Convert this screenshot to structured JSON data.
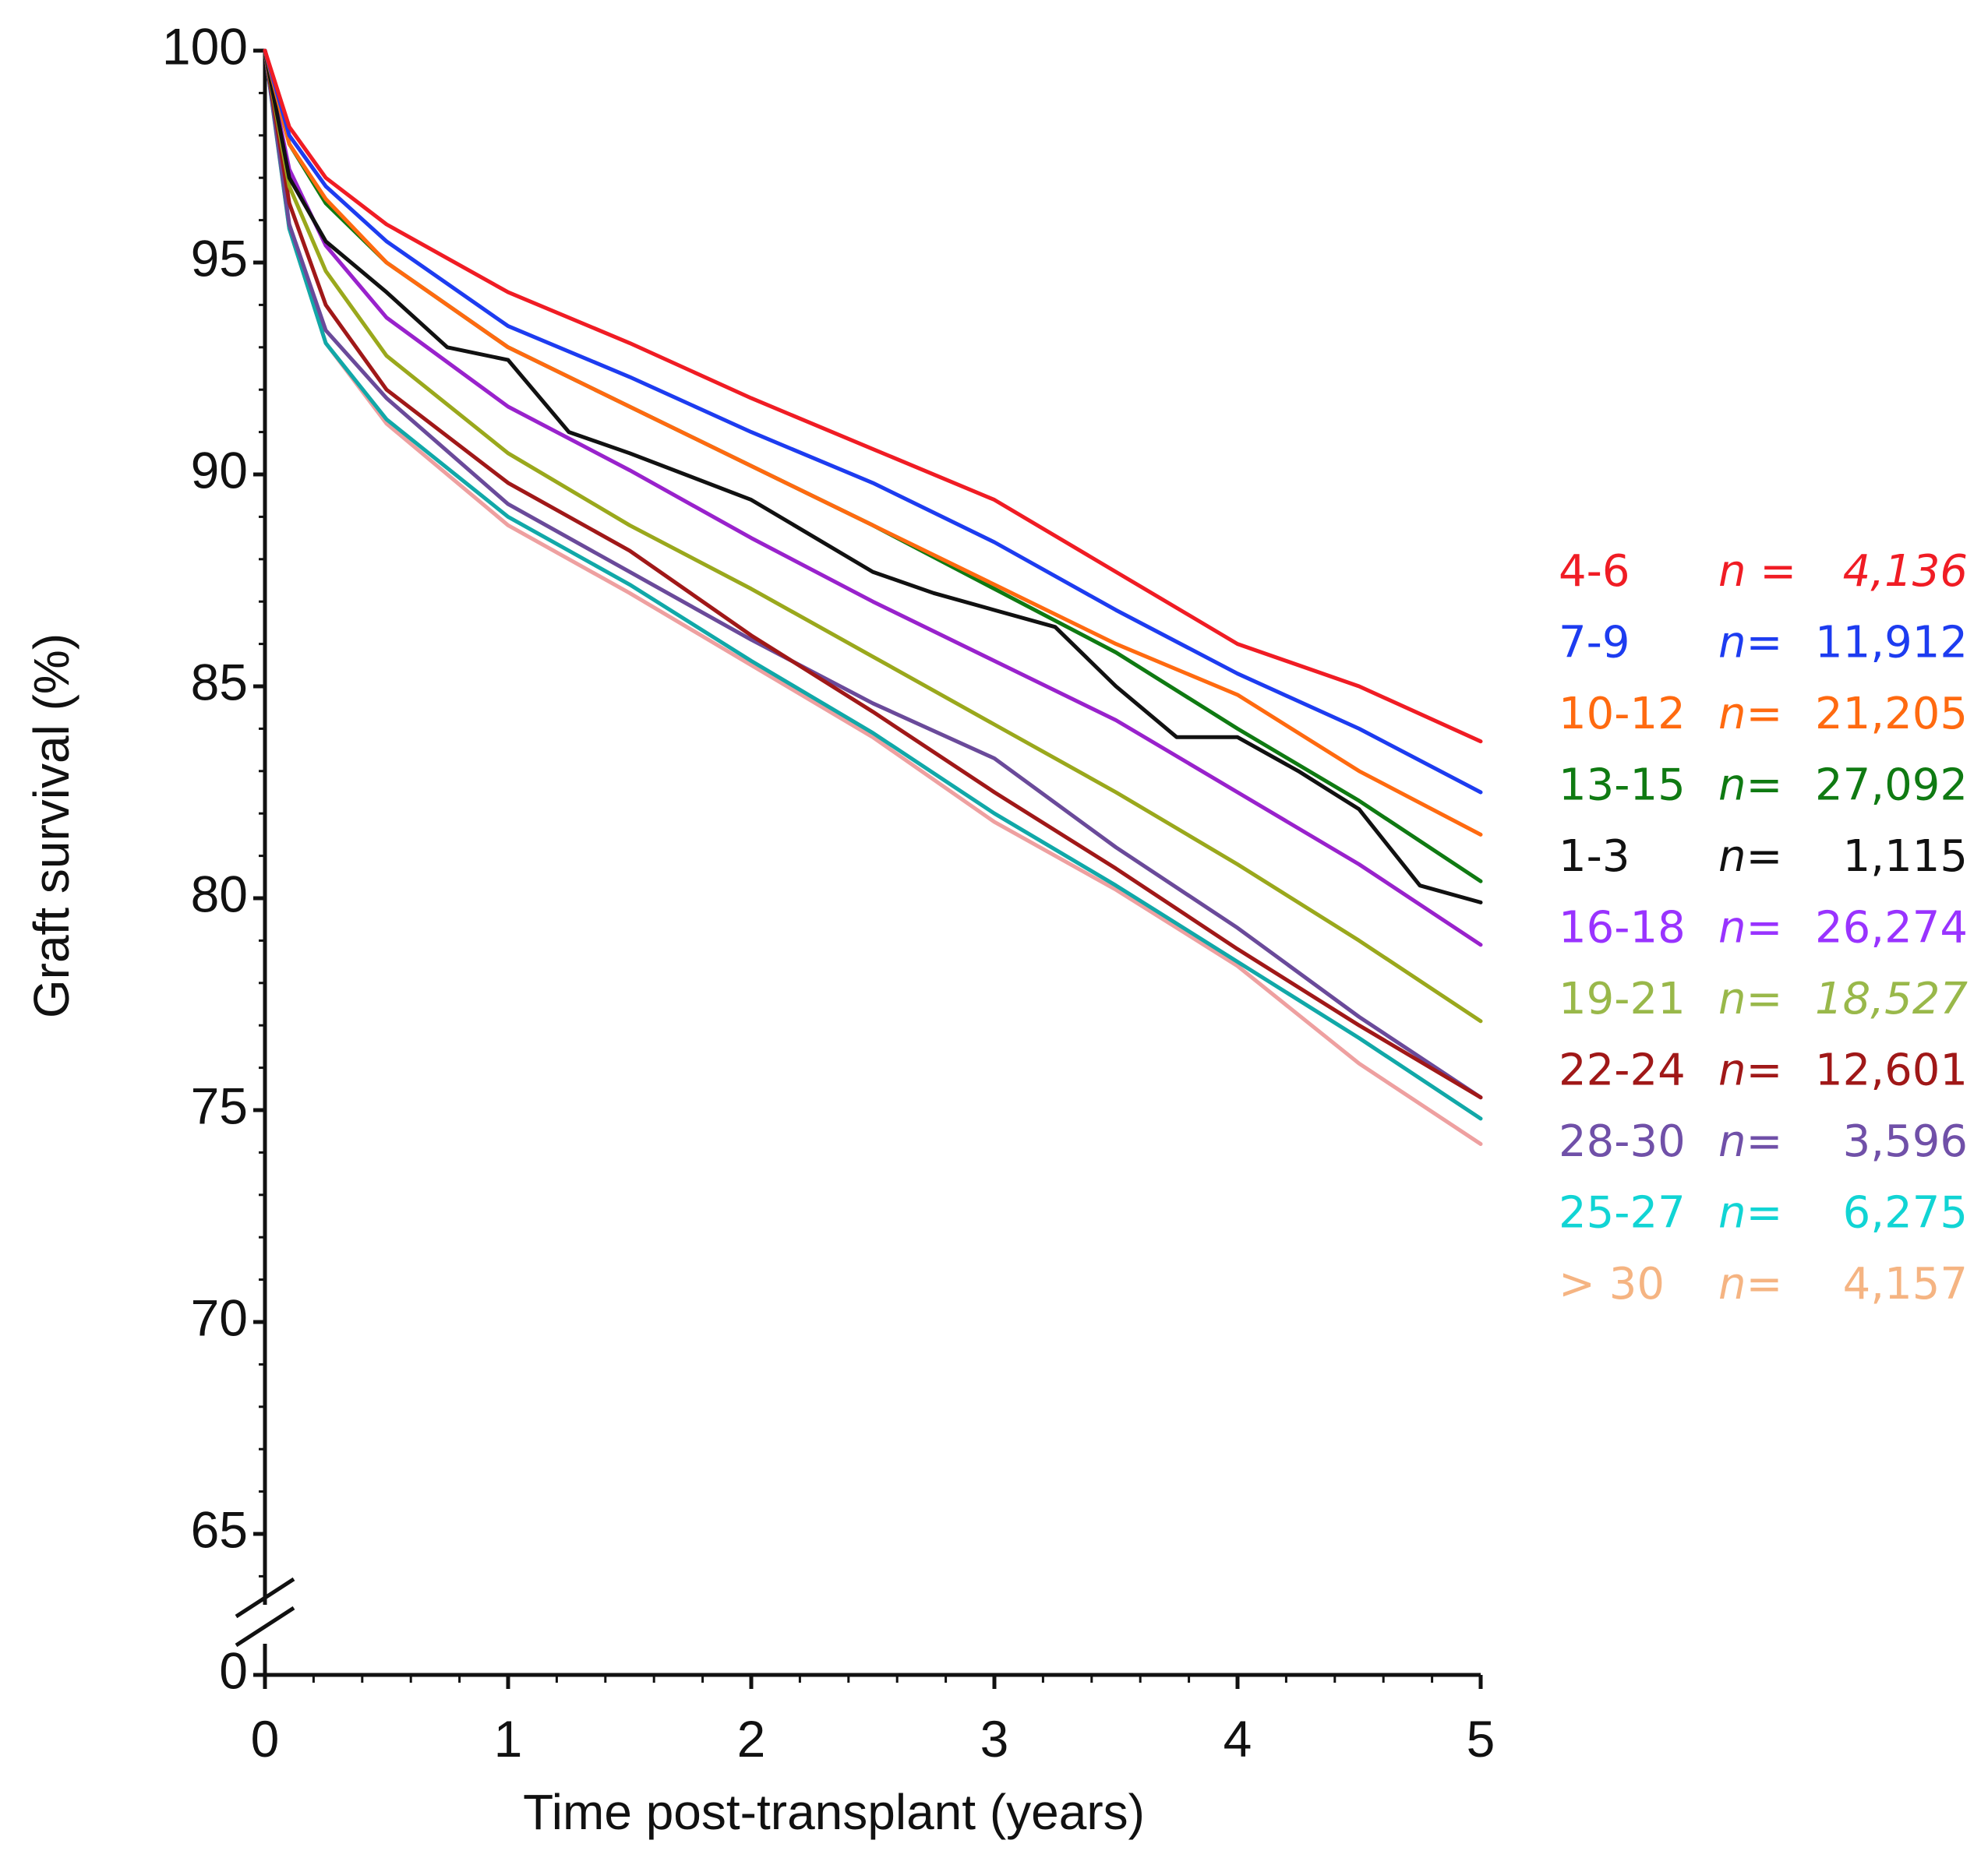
{
  "chart_data": {
    "type": "line",
    "xlabel": "Time post-transplant (years)",
    "ylabel": "Graft survival (%)",
    "xlim": [
      0,
      5
    ],
    "x_ticks": [
      "0",
      "1",
      "2",
      "3",
      "4",
      "5"
    ],
    "y_ticks": [
      "100",
      "95",
      "90",
      "85",
      "80",
      "75",
      "70",
      "65"
    ],
    "y_break_label": "0",
    "ylim": [
      62,
      100
    ],
    "legend_position": "right",
    "series": [
      {
        "name": "4-6",
        "n_prefix": "n =",
        "n_value": "4,136",
        "color": "#f01c24",
        "x": [
          0,
          0.1,
          0.25,
          0.5,
          1,
          1.5,
          2,
          2.5,
          3,
          3.5,
          4,
          4.5,
          5
        ],
        "values": [
          100,
          98.2,
          97,
          95.9,
          94.3,
          93.1,
          91.8,
          90.6,
          89.4,
          87.7,
          86,
          85,
          83.7
        ]
      },
      {
        "name": "7-9",
        "n_prefix": "n=",
        "n_value": "11,912",
        "color": "#1d3cf0",
        "x": [
          0,
          0.1,
          0.25,
          0.5,
          1,
          1.5,
          2,
          2.5,
          3,
          3.5,
          4,
          4.5,
          5
        ],
        "values": [
          100,
          98,
          96.8,
          95.5,
          93.5,
          92.3,
          91,
          89.8,
          88.4,
          86.8,
          85.3,
          84,
          82.5
        ]
      },
      {
        "name": "10-12",
        "n_prefix": "n=",
        "n_value": "21,205",
        "color": "#ff6a10",
        "x": [
          0,
          0.1,
          0.25,
          0.5,
          1,
          1.5,
          2,
          2.5,
          3,
          3.5,
          4,
          4.5,
          5
        ],
        "values": [
          100,
          97.8,
          96.5,
          95,
          93,
          91.6,
          90.2,
          88.8,
          87.4,
          86,
          84.8,
          83,
          81.5
        ]
      },
      {
        "name": "13-15",
        "n_prefix": "n=",
        "n_value": "27,092",
        "color": "#0f7a12",
        "x": [
          0,
          0.1,
          0.25,
          0.5,
          1,
          1.5,
          2,
          2.5,
          3,
          3.5,
          4,
          4.5,
          5
        ],
        "values": [
          100,
          97.8,
          96.4,
          95,
          93,
          91.6,
          90.2,
          88.8,
          87.3,
          85.8,
          84,
          82.3,
          80.4
        ]
      },
      {
        "name": "1-3",
        "n_prefix": "n=",
        "n_value": "1,115",
        "color": "#111111",
        "x": [
          0,
          0.1,
          0.25,
          0.5,
          0.75,
          1,
          1.25,
          1.5,
          2,
          2.5,
          2.75,
          3,
          3.25,
          3.5,
          3.75,
          4,
          4.25,
          4.5,
          4.75,
          5
        ],
        "values": [
          100,
          97,
          95.5,
          94.3,
          93,
          92.7,
          91,
          90.5,
          89.4,
          87.7,
          87.2,
          86.8,
          86.4,
          85,
          83.8,
          83.8,
          83,
          82.1,
          80.3,
          79.9
        ]
      },
      {
        "name": "16-18",
        "n_prefix": "n=",
        "n_value": "26,274",
        "color": "#9922cc",
        "x": [
          0,
          0.1,
          0.25,
          0.5,
          1,
          1.5,
          2,
          2.5,
          3,
          3.5,
          4,
          4.5,
          5
        ],
        "values": [
          100,
          97.2,
          95.4,
          93.7,
          91.6,
          90.1,
          88.5,
          87,
          85.6,
          84.2,
          82.5,
          80.8,
          78.9
        ]
      },
      {
        "name": "19-21",
        "n_prefix": "n=",
        "n_value": "18,527",
        "color": "#9aa81c",
        "x": [
          0,
          0.1,
          0.25,
          0.5,
          1,
          1.5,
          2,
          2.5,
          3,
          3.5,
          4,
          4.5,
          5
        ],
        "values": [
          100,
          96.8,
          94.8,
          92.8,
          90.5,
          88.8,
          87.3,
          85.7,
          84.1,
          82.5,
          80.8,
          79,
          77.1
        ]
      },
      {
        "name": "22-24",
        "n_prefix": "n=",
        "n_value": "12,601",
        "color": "#a01818",
        "x": [
          0,
          0.1,
          0.25,
          0.5,
          1,
          1.5,
          2,
          2.5,
          3,
          3.5,
          4,
          4.5,
          5
        ],
        "values": [
          100,
          96.4,
          94,
          92,
          89.8,
          88.2,
          86.2,
          84.4,
          82.5,
          80.7,
          78.8,
          77,
          75.3
        ]
      },
      {
        "name": "28-30",
        "n_prefix": "n=",
        "n_value": "3,596",
        "color": "#6a4a9a",
        "x": [
          0,
          0.1,
          0.25,
          0.5,
          1,
          1.5,
          2,
          2.5,
          3,
          3.5,
          4,
          4.5,
          5
        ],
        "values": [
          100,
          95.9,
          93.4,
          91.8,
          89.3,
          87.7,
          86.1,
          84.6,
          83.3,
          81.2,
          79.3,
          77.2,
          75.3
        ]
      },
      {
        "name": "25-27",
        "n_prefix": "n=",
        "n_value": "6,275",
        "color": "#11a8a8",
        "x": [
          0,
          0.1,
          0.25,
          0.5,
          1,
          1.5,
          2,
          2.5,
          3,
          3.5,
          4,
          4.5,
          5
        ],
        "values": [
          100,
          95.8,
          93.1,
          91.3,
          89,
          87.4,
          85.6,
          83.9,
          82,
          80.3,
          78.5,
          76.7,
          74.8
        ]
      },
      {
        "name": "> 30",
        "n_prefix": "n=",
        "n_value": "4,157",
        "color": "#eea0a0",
        "x": [
          0,
          0.1,
          0.25,
          0.5,
          1,
          1.5,
          2,
          2.5,
          3,
          3.5,
          4,
          4.5,
          5
        ],
        "values": [
          100,
          95.8,
          93.1,
          91.2,
          88.8,
          87.2,
          85.5,
          83.8,
          81.8,
          80.2,
          78.4,
          76.1,
          74.2
        ]
      }
    ],
    "legend": [
      {
        "label": "4-6",
        "n_prefix": "n =",
        "n_value": "4,136",
        "label_color": "#f01c24",
        "n_color": "#f01c24",
        "value_italic": true
      },
      {
        "label": "7-9",
        "n_prefix": "n=",
        "n_value": "11,912",
        "label_color": "#1d3cf0",
        "n_color": "#1d3cf0",
        "value_italic": false
      },
      {
        "label": "10-12",
        "n_prefix": "n=",
        "n_value": "21,205",
        "label_color": "#ff6a10",
        "n_color": "#ff6a10",
        "value_italic": false
      },
      {
        "label": "13-15",
        "n_prefix": "n=",
        "n_value": "27,092",
        "label_color": "#0f7a12",
        "n_color": "#0f7a12",
        "value_italic": false
      },
      {
        "label": "1-3",
        "n_prefix": "n=",
        "n_value": "1,115",
        "label_color": "#111111",
        "n_color": "#111111",
        "value_italic": false
      },
      {
        "label": "16-18",
        "n_prefix": "n=",
        "n_value": "26,274",
        "label_color": "#9933ff",
        "n_color": "#9933ff",
        "value_italic": false
      },
      {
        "label": "19-21",
        "n_prefix": "n=",
        "n_value": "18,527",
        "label_color": "#99b84a",
        "n_color": "#99b84a",
        "value_italic": true
      },
      {
        "label": "22-24",
        "n_prefix": "n=",
        "n_value": "12,601",
        "label_color": "#a01818",
        "n_color": "#a01818",
        "value_italic": false
      },
      {
        "label": "28-30",
        "n_prefix": "n=",
        "n_value": "3,596",
        "label_color": "#7050a8",
        "n_color": "#7050a8",
        "value_italic": false
      },
      {
        "label": "25-27",
        "n_prefix": "n=",
        "n_value": "6,275",
        "label_color": "#11d4d4",
        "n_color": "#11d4d4",
        "value_italic": false
      },
      {
        "label": "> 30",
        "n_prefix": "n=",
        "n_value": "4,157",
        "label_color": "#f5b482",
        "n_color": "#f5b482",
        "value_italic": false
      }
    ]
  }
}
